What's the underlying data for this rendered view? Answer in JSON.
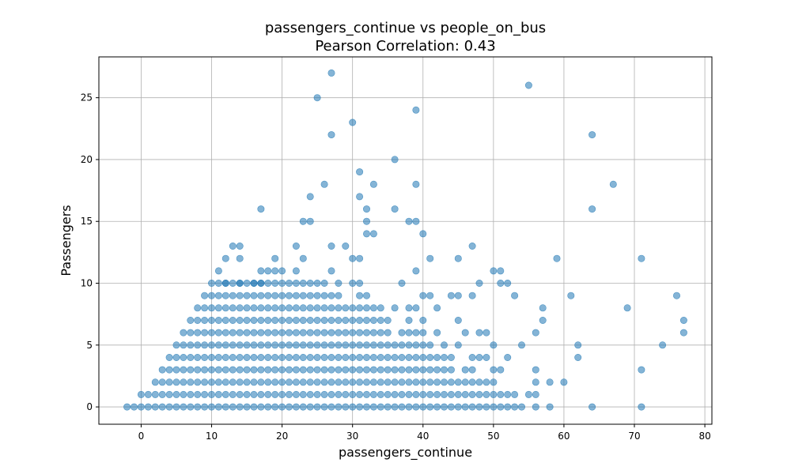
{
  "chart_data": {
    "type": "scatter",
    "title": "passengers_continue vs people_on_bus",
    "subtitle": "Pearson Correlation: 0.43",
    "xlabel": "passengers_continue",
    "ylabel": "Passengers",
    "xlim": [
      -6,
      81
    ],
    "ylim": [
      -1.4,
      28.3
    ],
    "xticks": [
      0,
      10,
      20,
      30,
      40,
      50,
      60,
      70,
      80
    ],
    "yticks": [
      0,
      5,
      10,
      15,
      20,
      25
    ],
    "grid": true,
    "point_color": "#1f77b4",
    "point_alpha": 0.55,
    "dense_blocks": [
      {
        "y": 0,
        "x_from": -2,
        "x_to": 47
      },
      {
        "y": 1,
        "x_from": 0,
        "x_to": 45
      },
      {
        "y": 2,
        "x_from": 2,
        "x_to": 44
      },
      {
        "y": 3,
        "x_from": 3,
        "x_to": 43
      },
      {
        "y": 4,
        "x_from": 4,
        "x_to": 40
      },
      {
        "y": 5,
        "x_from": 5,
        "x_to": 36
      },
      {
        "y": 6,
        "x_from": 6,
        "x_to": 33
      },
      {
        "y": 7,
        "x_from": 7,
        "x_to": 31
      },
      {
        "y": 8,
        "x_from": 8,
        "x_to": 28
      },
      {
        "y": 9,
        "x_from": 9,
        "x_to": 24
      },
      {
        "y": 10,
        "x_from": 11,
        "x_to": 20
      }
    ],
    "points": [
      [
        48,
        0
      ],
      [
        49,
        0
      ],
      [
        50,
        0
      ],
      [
        51,
        0
      ],
      [
        52,
        0
      ],
      [
        53,
        0
      ],
      [
        54,
        0
      ],
      [
        56,
        0
      ],
      [
        58,
        0
      ],
      [
        64,
        0
      ],
      [
        71,
        0
      ],
      [
        46,
        1
      ],
      [
        47,
        1
      ],
      [
        48,
        1
      ],
      [
        49,
        1
      ],
      [
        50,
        1
      ],
      [
        51,
        1
      ],
      [
        52,
        1
      ],
      [
        53,
        1
      ],
      [
        55,
        1
      ],
      [
        56,
        1
      ],
      [
        45,
        2
      ],
      [
        46,
        2
      ],
      [
        47,
        2
      ],
      [
        48,
        2
      ],
      [
        49,
        2
      ],
      [
        50,
        2
      ],
      [
        56,
        2
      ],
      [
        58,
        2
      ],
      [
        60,
        2
      ],
      [
        44,
        3
      ],
      [
        46,
        3
      ],
      [
        47,
        3
      ],
      [
        50,
        3
      ],
      [
        51,
        3
      ],
      [
        56,
        3
      ],
      [
        71,
        3
      ],
      [
        41,
        4
      ],
      [
        42,
        4
      ],
      [
        43,
        4
      ],
      [
        44,
        4
      ],
      [
        47,
        4
      ],
      [
        48,
        4
      ],
      [
        49,
        4
      ],
      [
        52,
        4
      ],
      [
        62,
        4
      ],
      [
        37,
        5
      ],
      [
        38,
        5
      ],
      [
        39,
        5
      ],
      [
        40,
        5
      ],
      [
        41,
        5
      ],
      [
        43,
        5
      ],
      [
        45,
        5
      ],
      [
        50,
        5
      ],
      [
        54,
        5
      ],
      [
        62,
        5
      ],
      [
        74,
        5
      ],
      [
        34,
        6
      ],
      [
        35,
        6
      ],
      [
        37,
        6
      ],
      [
        38,
        6
      ],
      [
        39,
        6
      ],
      [
        40,
        6
      ],
      [
        42,
        6
      ],
      [
        46,
        6
      ],
      [
        48,
        6
      ],
      [
        49,
        6
      ],
      [
        56,
        6
      ],
      [
        77,
        6
      ],
      [
        32,
        7
      ],
      [
        33,
        7
      ],
      [
        34,
        7
      ],
      [
        35,
        7
      ],
      [
        38,
        7
      ],
      [
        40,
        7
      ],
      [
        45,
        7
      ],
      [
        57,
        7
      ],
      [
        77,
        7
      ],
      [
        29,
        8
      ],
      [
        30,
        8
      ],
      [
        31,
        8
      ],
      [
        32,
        8
      ],
      [
        33,
        8
      ],
      [
        34,
        8
      ],
      [
        36,
        8
      ],
      [
        38,
        8
      ],
      [
        39,
        8
      ],
      [
        42,
        8
      ],
      [
        57,
        8
      ],
      [
        69,
        8
      ],
      [
        25,
        9
      ],
      [
        26,
        9
      ],
      [
        27,
        9
      ],
      [
        28,
        9
      ],
      [
        31,
        9
      ],
      [
        32,
        9
      ],
      [
        40,
        9
      ],
      [
        41,
        9
      ],
      [
        44,
        9
      ],
      [
        45,
        9
      ],
      [
        47,
        9
      ],
      [
        53,
        9
      ],
      [
        61,
        9
      ],
      [
        76,
        9
      ],
      [
        10,
        10
      ],
      [
        12,
        10
      ],
      [
        14,
        10
      ],
      [
        16,
        10
      ],
      [
        17,
        10
      ],
      [
        21,
        10
      ],
      [
        22,
        10
      ],
      [
        23,
        10
      ],
      [
        24,
        10
      ],
      [
        25,
        10
      ],
      [
        26,
        10
      ],
      [
        28,
        10
      ],
      [
        30,
        10
      ],
      [
        31,
        10
      ],
      [
        37,
        10
      ],
      [
        48,
        10
      ],
      [
        51,
        10
      ],
      [
        52,
        10
      ],
      [
        11,
        11
      ],
      [
        17,
        11
      ],
      [
        18,
        11
      ],
      [
        19,
        11
      ],
      [
        20,
        11
      ],
      [
        22,
        11
      ],
      [
        27,
        11
      ],
      [
        39,
        11
      ],
      [
        50,
        11
      ],
      [
        51,
        11
      ],
      [
        12,
        12
      ],
      [
        14,
        12
      ],
      [
        19,
        12
      ],
      [
        23,
        12
      ],
      [
        30,
        12
      ],
      [
        31,
        12
      ],
      [
        41,
        12
      ],
      [
        45,
        12
      ],
      [
        59,
        12
      ],
      [
        71,
        12
      ],
      [
        13,
        13
      ],
      [
        14,
        13
      ],
      [
        22,
        13
      ],
      [
        27,
        13
      ],
      [
        29,
        13
      ],
      [
        47,
        13
      ],
      [
        32,
        14
      ],
      [
        33,
        14
      ],
      [
        40,
        14
      ],
      [
        23,
        15
      ],
      [
        24,
        15
      ],
      [
        32,
        15
      ],
      [
        38,
        15
      ],
      [
        39,
        15
      ],
      [
        17,
        16
      ],
      [
        32,
        16
      ],
      [
        36,
        16
      ],
      [
        64,
        16
      ],
      [
        24,
        17
      ],
      [
        31,
        17
      ],
      [
        26,
        18
      ],
      [
        33,
        18
      ],
      [
        39,
        18
      ],
      [
        67,
        18
      ],
      [
        31,
        19
      ],
      [
        36,
        20
      ],
      [
        27,
        22
      ],
      [
        64,
        22
      ],
      [
        30,
        23
      ],
      [
        39,
        24
      ],
      [
        25,
        25
      ],
      [
        55,
        26
      ],
      [
        27,
        27
      ]
    ]
  }
}
